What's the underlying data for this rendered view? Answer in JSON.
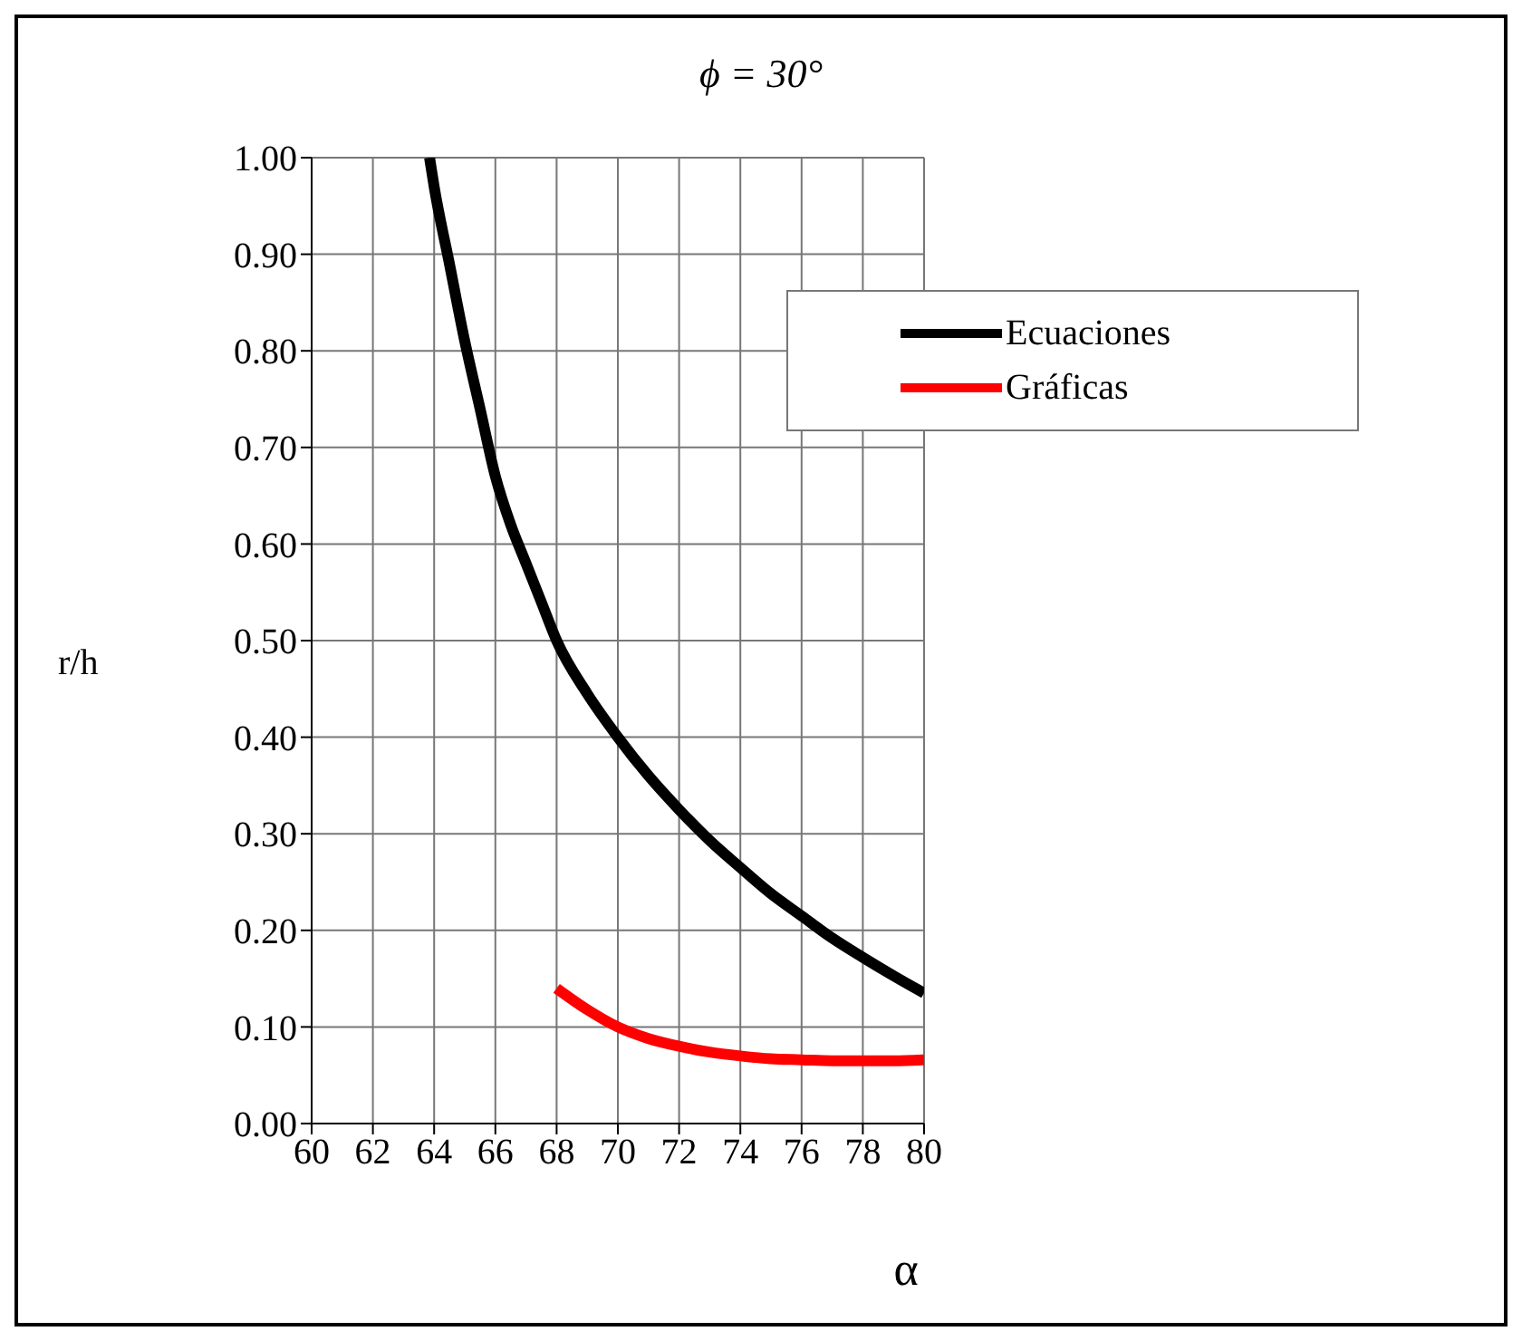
{
  "chart_data": {
    "type": "line",
    "title": "ϕ = 30°",
    "xlabel": "α",
    "ylabel": "r/h",
    "xlim": [
      60,
      80
    ],
    "xticks": [
      60,
      62,
      64,
      66,
      68,
      70,
      72,
      74,
      76,
      78,
      80
    ],
    "ylim": [
      0,
      1
    ],
    "yticks": [
      {
        "value": 0,
        "label": "0.00"
      },
      {
        "value": 0.1,
        "label": "0.10"
      },
      {
        "value": 0.2,
        "label": "0.20"
      },
      {
        "value": 0.3,
        "label": "0.30"
      },
      {
        "value": 0.4,
        "label": "0.40"
      },
      {
        "value": 0.5,
        "label": "0.50"
      },
      {
        "value": 0.6,
        "label": "0.60"
      },
      {
        "value": 0.7,
        "label": "0.70"
      },
      {
        "value": 0.8,
        "label": "0.80"
      },
      {
        "value": 0.9,
        "label": "0.90"
      },
      {
        "value": 1,
        "label": "1.00"
      }
    ],
    "grid": true,
    "legend": "top right",
    "marker": "none",
    "line_style": "solid",
    "series": [
      {
        "name": "Ecuaciones",
        "color": "#000000",
        "x": [
          63.85,
          64,
          64.5,
          65,
          65.5,
          66,
          66.5,
          67,
          67.5,
          68,
          69,
          70,
          71,
          72,
          73,
          74,
          75,
          76,
          77,
          78,
          79,
          80
        ],
        "values": [
          1.0,
          0.97,
          0.89,
          0.81,
          0.74,
          0.67,
          0.62,
          0.58,
          0.54,
          0.5,
          0.445,
          0.4,
          0.36,
          0.325,
          0.293,
          0.265,
          0.238,
          0.215,
          0.192,
          0.172,
          0.153,
          0.135
        ]
      },
      {
        "name": "Gráficas",
        "color": "#ff0000",
        "x": [
          68,
          69,
          70,
          71,
          72,
          73,
          74,
          75,
          76,
          77,
          78,
          79,
          80
        ],
        "values": [
          0.14,
          0.118,
          0.1,
          0.088,
          0.08,
          0.074,
          0.07,
          0.067,
          0.066,
          0.065,
          0.065,
          0.065,
          0.066
        ]
      }
    ]
  }
}
